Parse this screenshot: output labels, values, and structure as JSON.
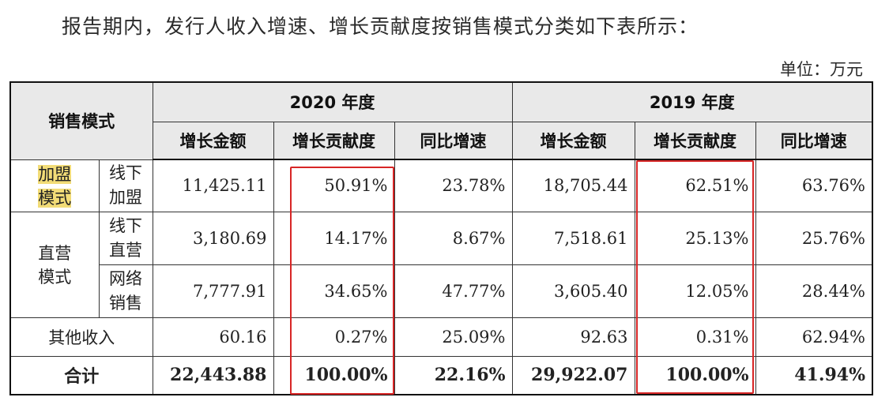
{
  "intro": "报告期内，发行人收入增速、增长贡献度按销售模式分类如下表所示：",
  "unit": "单位：万元",
  "table": {
    "mode_header": "销售模式",
    "year_2020": "2020 年度",
    "year_2019": "2019 年度",
    "col_amount": "增长金额",
    "col_contrib": "增长贡献度",
    "col_yoy": "同比增速",
    "franchise": {
      "cat_line1": "加盟",
      "cat_line2": "模式",
      "sub_line1": "线下",
      "sub_line2": "加盟",
      "v2020": [
        "11,425.11",
        "50.91%",
        "23.78%"
      ],
      "v2019": [
        "18,705.44",
        "62.51%",
        "63.76%"
      ]
    },
    "direct": {
      "cat_line1": "直营",
      "cat_line2": "模式",
      "offline": {
        "sub_line1": "线下",
        "sub_line2": "直营",
        "v2020": [
          "3,180.69",
          "14.17%",
          "8.67%"
        ],
        "v2019": [
          "7,518.61",
          "25.13%",
          "25.76%"
        ]
      },
      "online": {
        "sub_line1": "网络",
        "sub_line2": "销售",
        "v2020": [
          "7,777.91",
          "34.65%",
          "47.77%"
        ],
        "v2019": [
          "3,605.40",
          "12.05%",
          "28.44%"
        ]
      }
    },
    "other": {
      "label": "其他收入",
      "v2020": [
        "60.16",
        "0.27%",
        "25.09%"
      ],
      "v2019": [
        "92.63",
        "0.31%",
        "62.94%"
      ]
    },
    "total": {
      "label": "合计",
      "v2020": [
        "22,443.88",
        "100.00%",
        "22.16%"
      ],
      "v2019": [
        "29,922.07",
        "100.00%",
        "41.94%"
      ]
    }
  },
  "colors": {
    "highlight": "#f2dc77",
    "red_box": "#d72525",
    "header_bg": "#e9e9e9"
  }
}
